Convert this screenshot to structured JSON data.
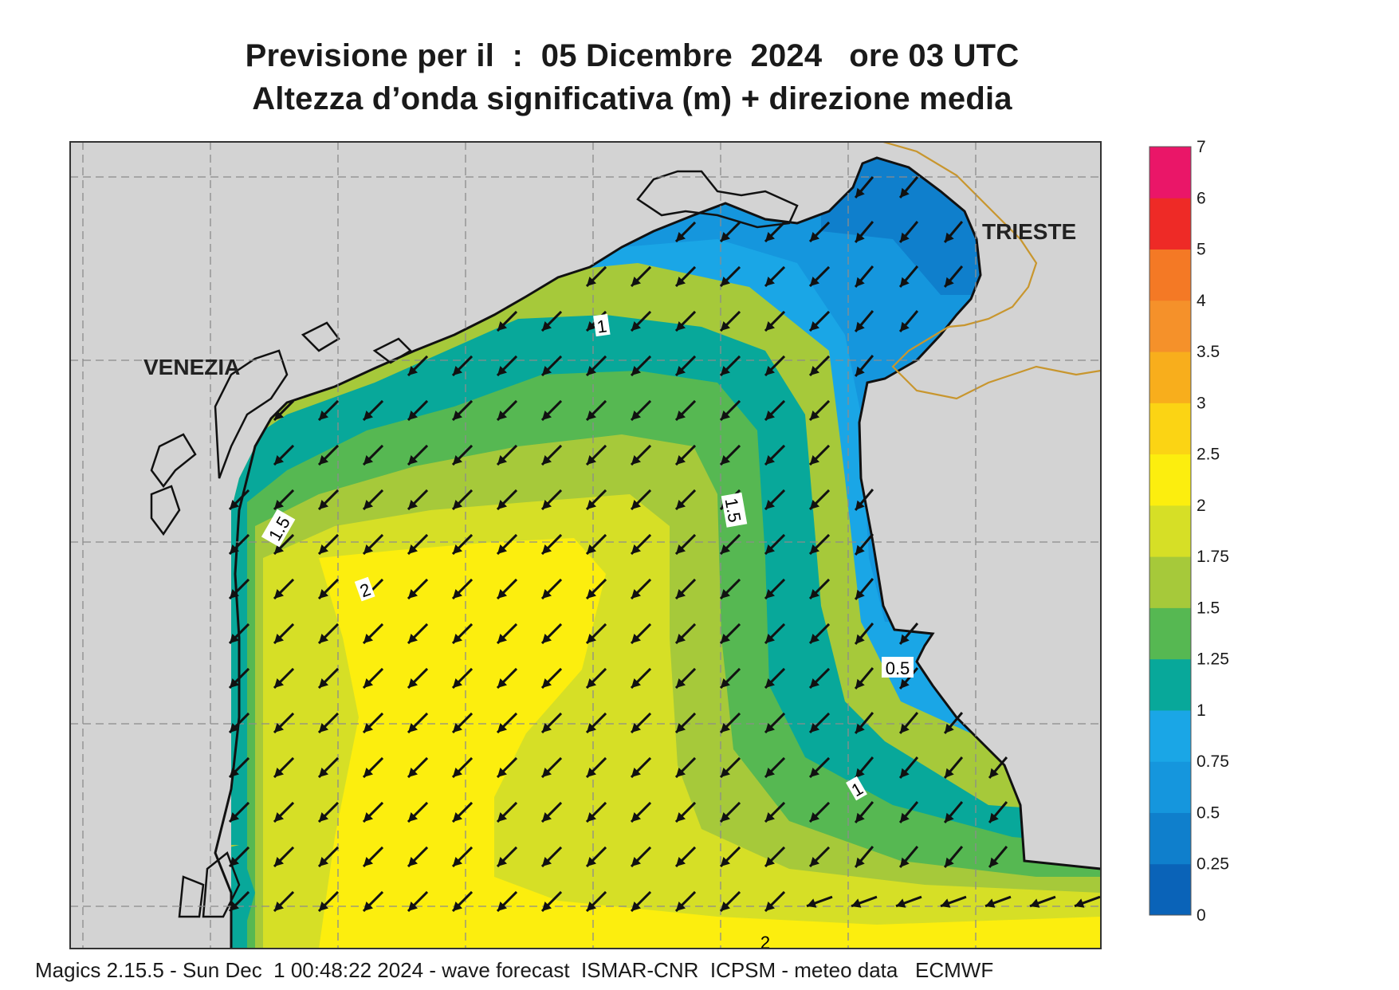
{
  "title_line1": "Previsione per il  :  05 Dicembre  2024   ore 03 UTC",
  "title_line2": "Altezza d’onda significativa (m) + direzione media",
  "footer": "Magics 2.15.5 - Sun Dec  1 00:48:22 2024 - wave forecast  ISMAR-CNR  ICPSM - meteo data   ECMWF",
  "places": [
    "VENEZIA",
    "TRIESTE"
  ],
  "contour_labels": [
    "1",
    "1.5",
    "1.5",
    "2",
    "0.5",
    "1",
    "2"
  ],
  "colorbar": {
    "levels": [
      "0",
      "0.25",
      "0.5",
      "0.75",
      "1",
      "1.25",
      "1.5",
      "1.75",
      "2",
      "2.5",
      "3",
      "3.5",
      "4",
      "5",
      "6",
      "7"
    ],
    "colors": [
      "#0a63b8",
      "#0f7fcc",
      "#1596dd",
      "#1aa6e6",
      "#08a89a",
      "#56b852",
      "#a6c93a",
      "#d6df26",
      "#fcee0e",
      "#fbd414",
      "#f8ae1c",
      "#f5912a",
      "#f47925",
      "#ee2a26",
      "#ea1668"
    ]
  },
  "map_colors": {
    "land": "#d3d3d3",
    "coast": "#111111",
    "grid": "#8c8c8c",
    "border": "#c8962e"
  }
}
